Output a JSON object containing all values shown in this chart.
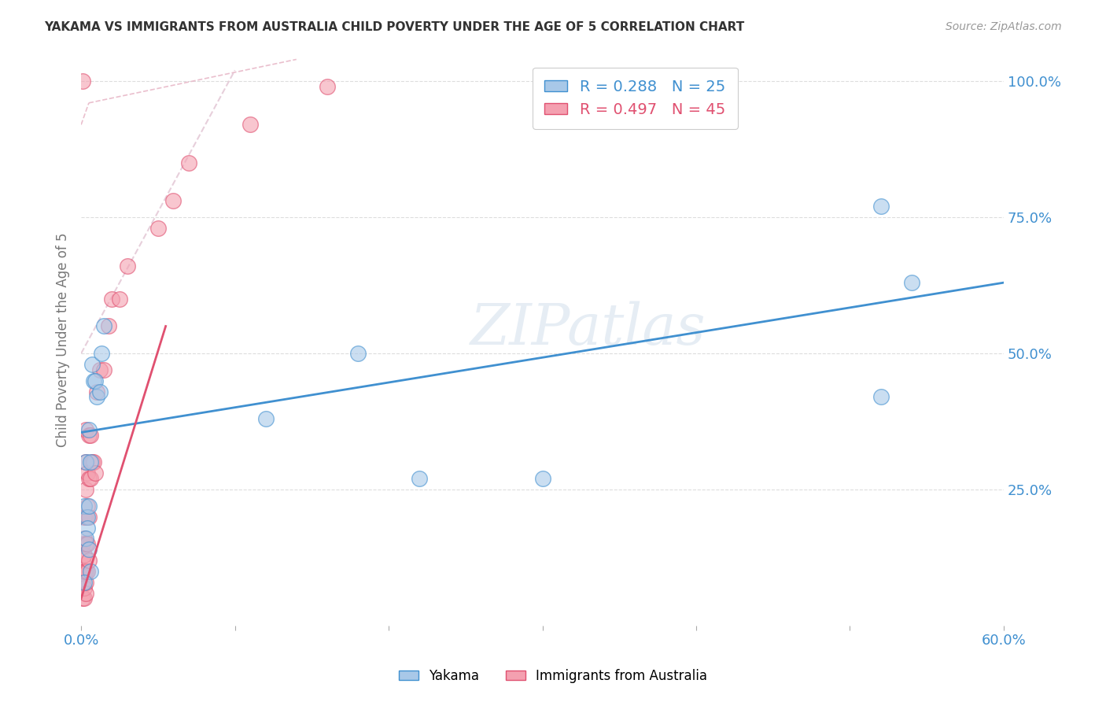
{
  "title": "YAKAMA VS IMMIGRANTS FROM AUSTRALIA CHILD POVERTY UNDER THE AGE OF 5 CORRELATION CHART",
  "source": "Source: ZipAtlas.com",
  "ylabel": "Child Poverty Under the Age of 5",
  "r_blue": 0.288,
  "n_blue": 25,
  "r_pink": 0.497,
  "n_pink": 45,
  "legend_blue": "Yakama",
  "legend_pink": "Immigrants from Australia",
  "xlim": [
    0.0,
    0.6
  ],
  "ylim": [
    0.0,
    1.05
  ],
  "color_blue": "#a8c8e8",
  "color_pink": "#f4a0b0",
  "color_blue_line": "#4090d0",
  "color_pink_line": "#e05070",
  "color_ref_line": "#e8b8c8",
  "blue_x": [
    0.002,
    0.003,
    0.004,
    0.004,
    0.005,
    0.005,
    0.006,
    0.007,
    0.008,
    0.009,
    0.01,
    0.012,
    0.013,
    0.015,
    0.12,
    0.18,
    0.22,
    0.3,
    0.52,
    0.54,
    0.52,
    0.003,
    0.005,
    0.006,
    0.002
  ],
  "blue_y": [
    0.22,
    0.3,
    0.2,
    0.18,
    0.36,
    0.22,
    0.3,
    0.48,
    0.45,
    0.45,
    0.42,
    0.43,
    0.5,
    0.55,
    0.38,
    0.5,
    0.27,
    0.27,
    0.77,
    0.63,
    0.42,
    0.16,
    0.14,
    0.1,
    0.08
  ],
  "pink_x": [
    0.001,
    0.001,
    0.001,
    0.001,
    0.001,
    0.002,
    0.002,
    0.002,
    0.002,
    0.002,
    0.002,
    0.003,
    0.003,
    0.003,
    0.003,
    0.003,
    0.003,
    0.003,
    0.003,
    0.004,
    0.004,
    0.004,
    0.004,
    0.005,
    0.005,
    0.005,
    0.005,
    0.006,
    0.006,
    0.007,
    0.008,
    0.009,
    0.01,
    0.012,
    0.015,
    0.018,
    0.02,
    0.025,
    0.03,
    0.05,
    0.06,
    0.07,
    0.11,
    0.16,
    0.001
  ],
  "pink_y": [
    0.05,
    0.08,
    0.1,
    0.12,
    0.15,
    0.05,
    0.07,
    0.1,
    0.13,
    0.16,
    0.2,
    0.06,
    0.08,
    0.1,
    0.15,
    0.2,
    0.25,
    0.3,
    0.36,
    0.1,
    0.15,
    0.22,
    0.28,
    0.12,
    0.2,
    0.27,
    0.35,
    0.27,
    0.35,
    0.3,
    0.3,
    0.28,
    0.43,
    0.47,
    0.47,
    0.55,
    0.6,
    0.6,
    0.66,
    0.73,
    0.78,
    0.85,
    0.92,
    0.99,
    1.0
  ],
  "blue_line_x0": 0.0,
  "blue_line_y0": 0.355,
  "blue_line_x1": 0.6,
  "blue_line_y1": 0.63,
  "pink_line_x0": 0.0,
  "pink_line_y0": 0.05,
  "pink_line_x1": 0.055,
  "pink_line_y1": 0.55,
  "ref_line_x0": 0.005,
  "ref_line_y0": 0.95,
  "ref_line_x1": 0.145,
  "ref_line_y1": 1.05,
  "watermark": "ZIPatlas",
  "bg_color": "#ffffff",
  "grid_color": "#dddddd"
}
